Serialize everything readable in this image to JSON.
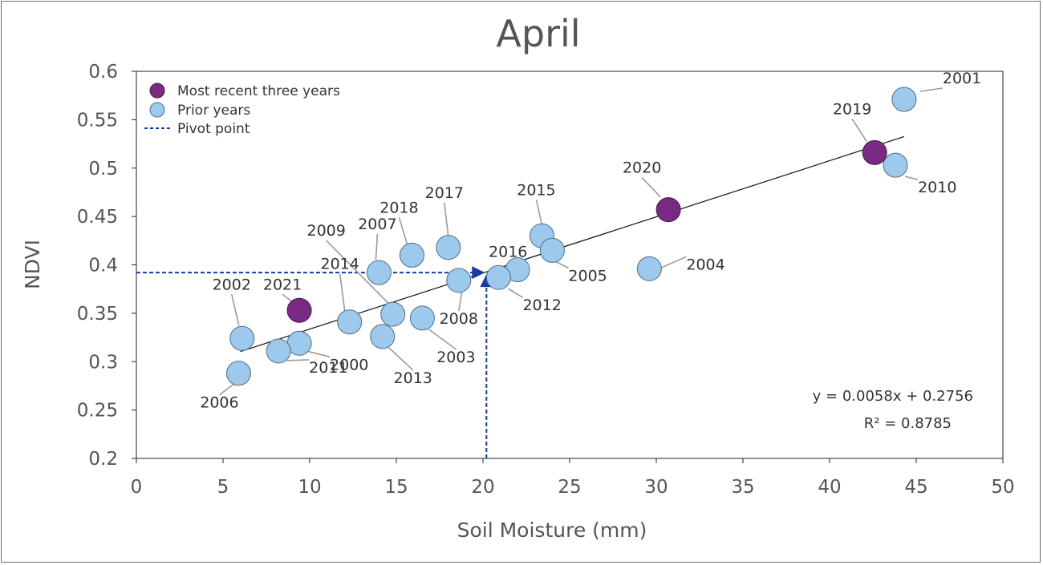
{
  "chart_data": {
    "type": "scatter",
    "title": "April",
    "xlabel": "Soil Moisture (mm)",
    "ylabel": "NDVI",
    "xlim": [
      0,
      50
    ],
    "ylim": [
      0.2,
      0.6
    ],
    "xticks": [
      "0",
      "5",
      "10",
      "15",
      "20",
      "25",
      "30",
      "35",
      "40",
      "45",
      "50"
    ],
    "yticks": [
      "0.2",
      "0.25",
      "0.3",
      "0.35",
      "0.4",
      "0.45",
      "0.5",
      "0.55",
      "0.6"
    ],
    "grid": false,
    "legend_position": "top-left",
    "legend": {
      "recent_label": "Most recent three years",
      "prior_label": "Prior years",
      "pivot_label": "Pivot point"
    },
    "colors": {
      "recent": "#7a2a85",
      "prior": "#9dc9ec",
      "pivot": "#1a3aa3",
      "trendline": "#111111"
    },
    "series": [
      {
        "name": "Most recent three years",
        "points": [
          {
            "label": "2021",
            "x": 9.4,
            "y": 0.353
          },
          {
            "label": "2020",
            "x": 30.7,
            "y": 0.457
          },
          {
            "label": "2019",
            "x": 42.6,
            "y": 0.516
          }
        ]
      },
      {
        "name": "Prior years",
        "points": [
          {
            "label": "2001",
            "x": 44.3,
            "y": 0.571
          },
          {
            "label": "2010",
            "x": 43.8,
            "y": 0.503
          },
          {
            "label": "2004",
            "x": 29.6,
            "y": 0.396
          },
          {
            "label": "2015",
            "x": 23.4,
            "y": 0.43
          },
          {
            "label": "2005",
            "x": 24.0,
            "y": 0.415
          },
          {
            "label": "2016",
            "x": 22.0,
            "y": 0.395
          },
          {
            "label": "2012",
            "x": 20.9,
            "y": 0.387
          },
          {
            "label": "2008",
            "x": 18.6,
            "y": 0.384
          },
          {
            "label": "2017",
            "x": 18.0,
            "y": 0.418
          },
          {
            "label": "2018",
            "x": 15.9,
            "y": 0.41
          },
          {
            "label": "2007",
            "x": 14.0,
            "y": 0.392
          },
          {
            "label": "2009",
            "x": 14.8,
            "y": 0.349
          },
          {
            "label": "2003",
            "x": 16.5,
            "y": 0.345
          },
          {
            "label": "2013",
            "x": 14.2,
            "y": 0.326
          },
          {
            "label": "2014",
            "x": 12.3,
            "y": 0.341
          },
          {
            "label": "2000",
            "x": 9.4,
            "y": 0.319
          },
          {
            "label": "2011",
            "x": 8.2,
            "y": 0.311
          },
          {
            "label": "2002",
            "x": 6.1,
            "y": 0.324
          },
          {
            "label": "2006",
            "x": 5.9,
            "y": 0.288
          }
        ]
      }
    ],
    "trendline": {
      "slope": 0.0058,
      "intercept": 0.2756,
      "x_range": [
        6,
        44.3
      ],
      "equation": "y = 0.0058x + 0.2756",
      "r_squared": "R² = 0.8785"
    },
    "pivot_point": {
      "x": 20.2,
      "y": 0.392
    }
  }
}
